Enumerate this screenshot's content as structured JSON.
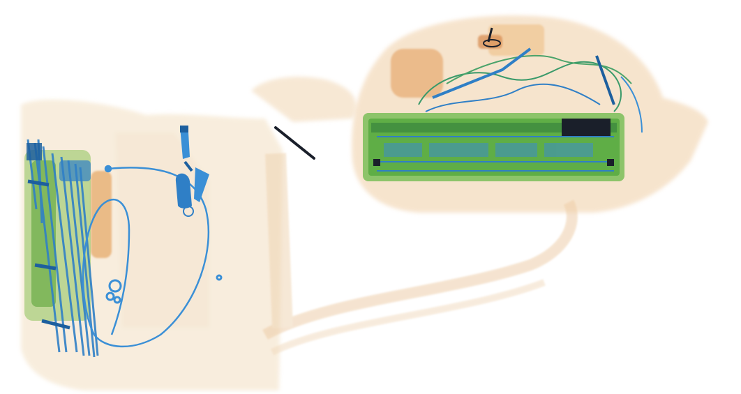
{
  "image": {
    "kind": "x-ray baggage scan",
    "background": "#ffffff"
  },
  "palette": {
    "organic_light": "#f3d9b8",
    "organic_mid": "#e9b07a",
    "organic_dark": "#d9925a",
    "mixed_green": "#8dc46a",
    "mixed_green_dark": "#4f9a3c",
    "metal_blue": "#2f7fc6",
    "metal_blue_dark": "#1d5f9e",
    "dense_black": "#1a1f2a"
  },
  "objects": [
    {
      "name": "bag-left",
      "material": "organic"
    },
    {
      "name": "bag-right",
      "material": "organic"
    },
    {
      "name": "connecting-strap",
      "material": "organic"
    },
    {
      "name": "umbrella-bundle",
      "material": "metal"
    },
    {
      "name": "cable-loop",
      "material": "metal"
    },
    {
      "name": "keys",
      "material": "metal"
    },
    {
      "name": "rings",
      "material": "metal"
    },
    {
      "name": "pen-rod",
      "material": "dense"
    },
    {
      "name": "keyboard",
      "material": "mixed"
    },
    {
      "name": "tangled-wires",
      "material": "metal"
    },
    {
      "name": "charger-block",
      "material": "organic"
    }
  ]
}
